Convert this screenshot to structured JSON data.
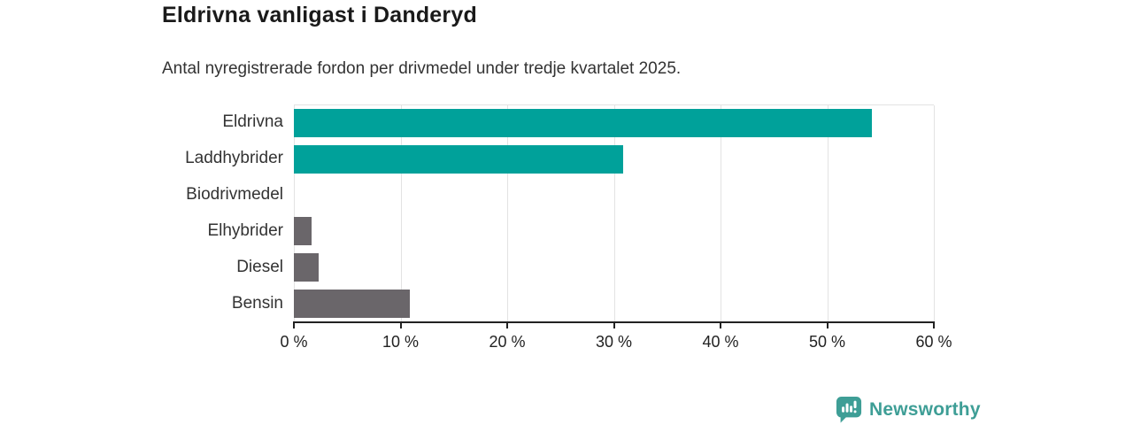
{
  "header": {
    "title": "Eldrivna vanligast i Danderyd",
    "subtitle": "Antal nyregistrerade fordon per drivmedel under tredje kvartalet 2025."
  },
  "chart_data": {
    "type": "bar",
    "orientation": "horizontal",
    "title": "Eldrivna vanligast i Danderyd",
    "subtitle": "Antal nyregistrerade fordon per drivmedel under tredje kvartalet 2025.",
    "categories": [
      "Eldrivna",
      "Laddhybrider",
      "Biodrivmedel",
      "Elhybrider",
      "Diesel",
      "Bensin"
    ],
    "values": [
      54.2,
      30.9,
      0,
      1.7,
      2.3,
      10.9
    ],
    "unit": "%",
    "bar_colors": [
      "#00A19A",
      "#00A19A",
      "#6A666A",
      "#6A666A",
      "#6A666A",
      "#6A666A"
    ],
    "xlim": [
      0,
      60
    ],
    "x_ticks": [
      0,
      10,
      20,
      30,
      40,
      50,
      60
    ],
    "x_tick_labels": [
      "0 %",
      "10 %",
      "20 %",
      "30 %",
      "40 %",
      "50 %",
      "60 %"
    ],
    "grid": "vertical-gridlines-on",
    "legend": "none",
    "xlabel": "",
    "ylabel": ""
  },
  "footer": {
    "brand": "Newsworthy",
    "logo_icon": "newsworthy-chart-speech-bubble-icon"
  },
  "colors": {
    "accent_teal": "#00A19A",
    "neutral_gray": "#6A666A",
    "brand_teal": "#3E9E96",
    "title_text": "#1A1A1A",
    "body_text": "#333333",
    "axis": "#222222",
    "gridline": "#E3E3E3",
    "background": "#FFFFFF"
  }
}
